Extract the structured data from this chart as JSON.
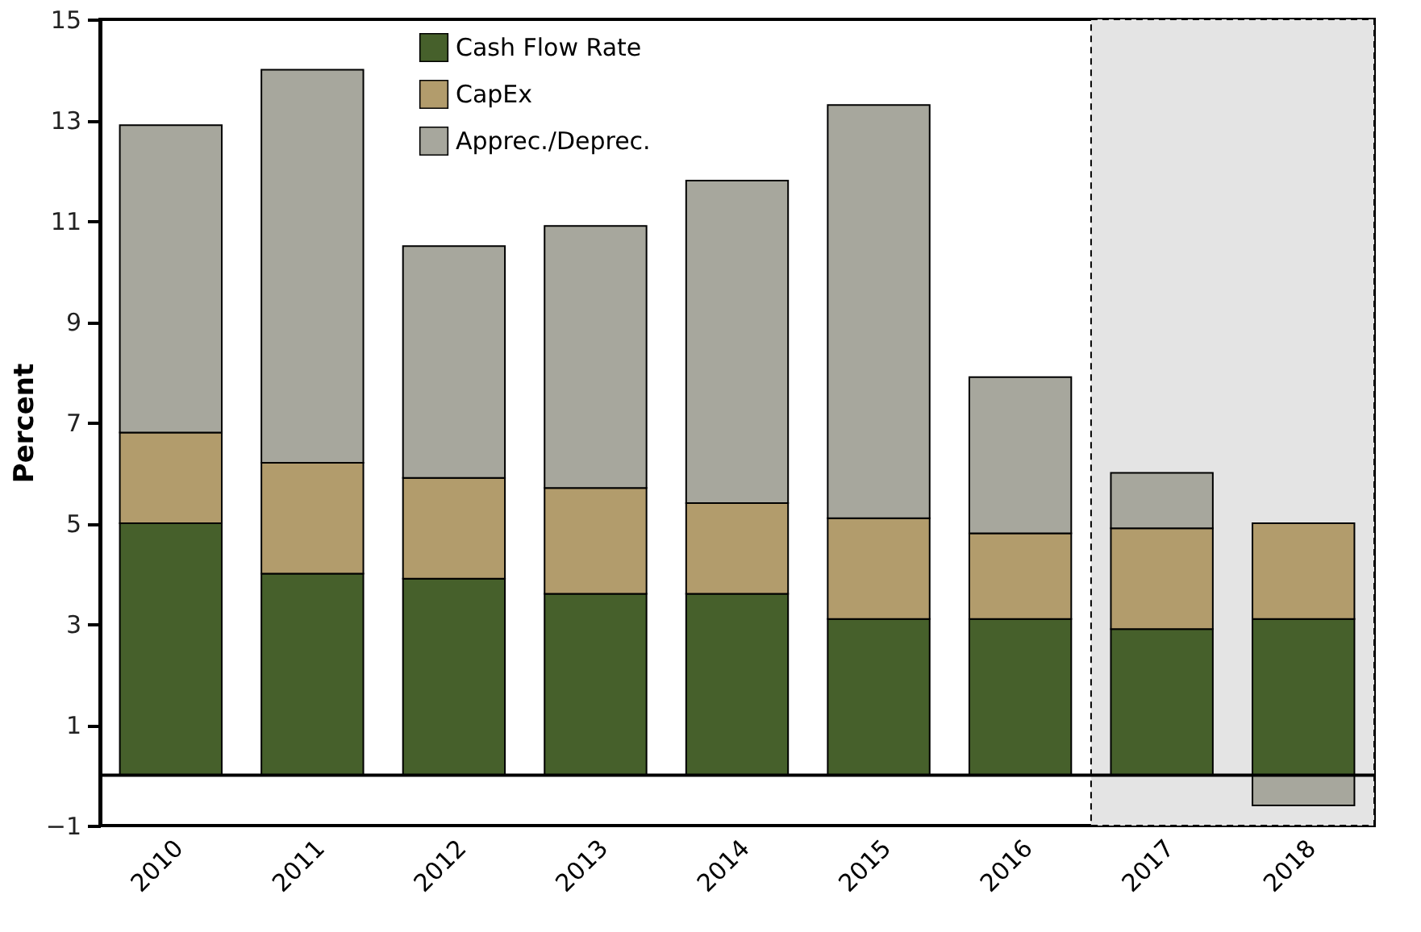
{
  "chart_data": {
    "type": "bar",
    "stacked": true,
    "ylabel": "Percent",
    "categories": [
      "2010",
      "2011",
      "2012",
      "2013",
      "2014",
      "2015",
      "2016",
      "2017",
      "2018"
    ],
    "series": [
      {
        "name": "Cash Flow Rate",
        "color": "#46602b",
        "values": [
          5.0,
          4.0,
          3.9,
          3.6,
          3.6,
          3.1,
          3.1,
          2.9,
          3.1
        ]
      },
      {
        "name": "CapEx",
        "color": "#b29c6c",
        "values": [
          1.8,
          2.2,
          2.0,
          2.1,
          1.8,
          2.0,
          1.7,
          2.0,
          1.9
        ]
      },
      {
        "name": "Apprec./Deprec.",
        "color": "#a7a79d",
        "values": [
          6.1,
          7.8,
          4.6,
          5.2,
          6.4,
          8.2,
          3.1,
          1.1,
          -0.6
        ]
      }
    ],
    "ylim": [
      -1,
      15
    ],
    "yticks": [
      -1,
      1,
      3,
      5,
      7,
      9,
      11,
      13,
      15
    ],
    "ref_lines": [
      {
        "axis": "y",
        "value": 0,
        "color": "#000000"
      }
    ],
    "bands": [
      {
        "axis": "x",
        "from": "2017",
        "to": "2018",
        "color": "#e4e4e4"
      }
    ],
    "grid": false,
    "legend": "top"
  }
}
